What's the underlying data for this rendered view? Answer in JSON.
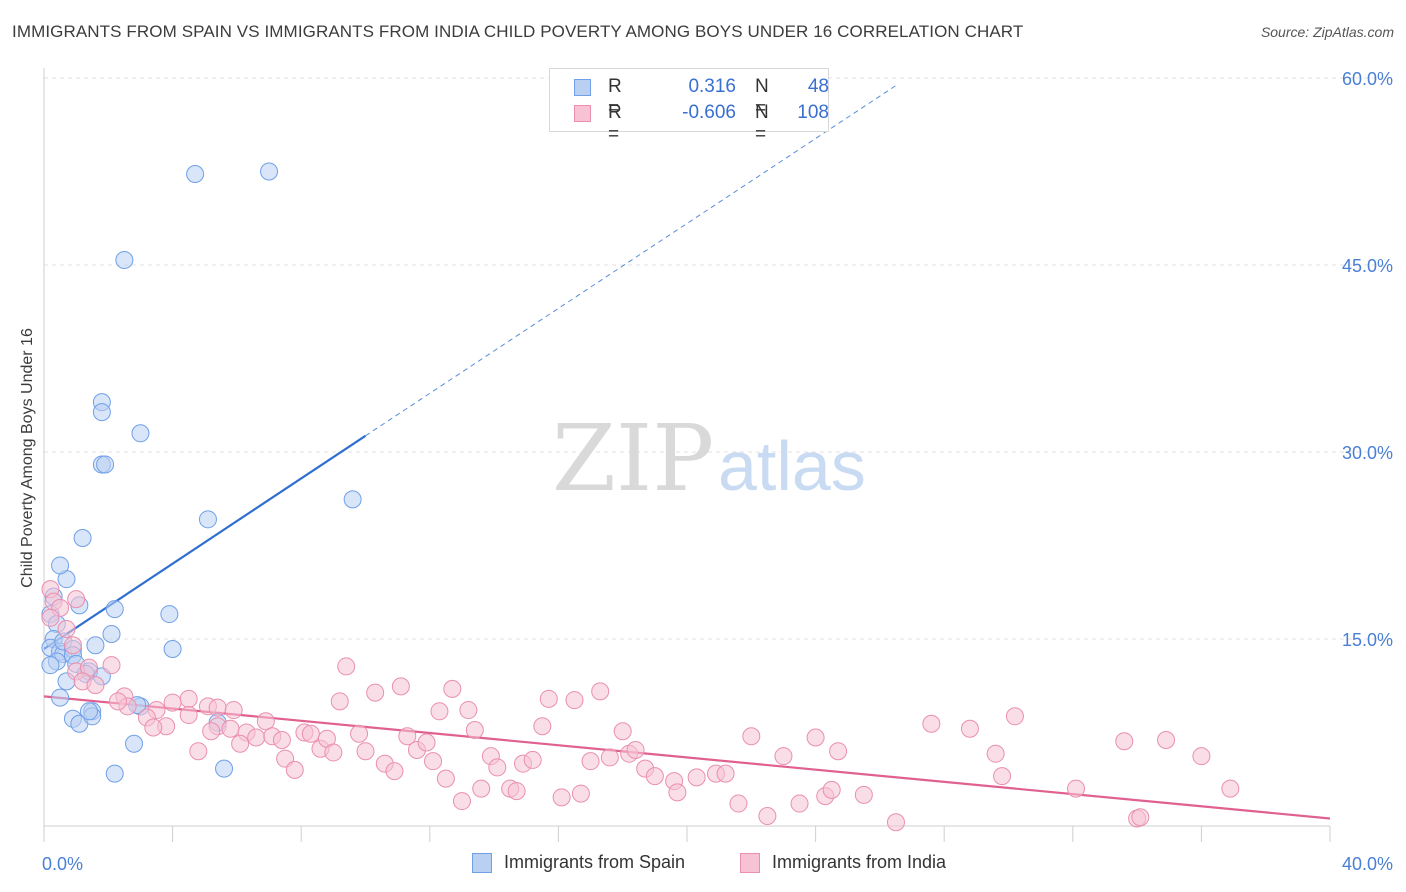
{
  "chart_data": {
    "type": "scatter",
    "title": "IMMIGRANTS FROM SPAIN VS IMMIGRANTS FROM INDIA CHILD POVERTY AMONG BOYS UNDER 16 CORRELATION CHART",
    "source": "Source: ZipAtlas.com",
    "xlabel": "",
    "ylabel": "Child Poverty Among Boys Under 16",
    "xlim": [
      0,
      40
    ],
    "ylim": [
      0,
      60
    ],
    "x_tick_labels": [
      "0.0%",
      "40.0%"
    ],
    "y_tick_labels": [
      "15.0%",
      "30.0%",
      "45.0%",
      "60.0%"
    ],
    "y_ticks": [
      15,
      30,
      45,
      60
    ],
    "watermark": {
      "zip": "ZIP",
      "atlas": "atlas"
    },
    "legend": {
      "r_label": "R =",
      "n_label": "N =",
      "entries": [
        {
          "name": "Immigrants from Spain",
          "r": "0.316",
          "n": "48"
        },
        {
          "name": "Immigrants from India",
          "r": "-0.606",
          "n": "108"
        }
      ]
    },
    "series": [
      {
        "name": "Immigrants from Spain",
        "color": "#6fa0e8",
        "fill": "#b9d0f3",
        "trend": {
          "x0": 0,
          "y0": 14.2,
          "x1": 10,
          "y1": 31.3,
          "dash_to_x": 26.5,
          "dash_to_y": 59.4,
          "color": "#2f6fcf"
        },
        "points": [
          [
            0.3,
            18.4
          ],
          [
            0.2,
            17.0
          ],
          [
            0.4,
            16.2
          ],
          [
            0.3,
            15.0
          ],
          [
            0.2,
            14.3
          ],
          [
            0.5,
            14.0
          ],
          [
            0.6,
            13.8
          ],
          [
            0.4,
            13.2
          ],
          [
            0.2,
            12.9
          ],
          [
            0.6,
            14.8
          ],
          [
            0.9,
            14.2
          ],
          [
            1.6,
            14.5
          ],
          [
            0.9,
            13.7
          ],
          [
            1.0,
            13.0
          ],
          [
            1.4,
            12.4
          ],
          [
            1.8,
            12.0
          ],
          [
            0.7,
            11.6
          ],
          [
            1.3,
            12.2
          ],
          [
            0.5,
            10.3
          ],
          [
            0.9,
            8.6
          ],
          [
            1.1,
            8.2
          ],
          [
            1.5,
            9.2
          ],
          [
            1.5,
            8.8
          ],
          [
            1.4,
            9.2
          ],
          [
            1.1,
            17.7
          ],
          [
            0.7,
            19.8
          ],
          [
            0.5,
            20.9
          ],
          [
            1.2,
            23.1
          ],
          [
            2.2,
            17.4
          ],
          [
            2.1,
            15.4
          ],
          [
            3.9,
            17.0
          ],
          [
            4.0,
            14.2
          ],
          [
            3.0,
            9.6
          ],
          [
            2.9,
            9.7
          ],
          [
            5.4,
            8.3
          ],
          [
            2.8,
            6.6
          ],
          [
            2.2,
            4.2
          ],
          [
            5.6,
            4.6
          ],
          [
            2.5,
            45.4
          ],
          [
            4.7,
            52.3
          ],
          [
            7.0,
            52.5
          ],
          [
            1.8,
            34.0
          ],
          [
            1.8,
            33.2
          ],
          [
            3.0,
            31.5
          ],
          [
            1.8,
            29.0
          ],
          [
            1.9,
            29.0
          ],
          [
            5.1,
            24.6
          ],
          [
            9.6,
            26.2
          ]
        ]
      },
      {
        "name": "Immigrants from India",
        "color": "#ea8fb0",
        "fill": "#f6c2d4",
        "trend": {
          "x0": 0,
          "y0": 10.4,
          "x1": 40,
          "y1": 0.6,
          "color": "#e0608f"
        },
        "points": [
          [
            0.2,
            19.0
          ],
          [
            0.3,
            18.0
          ],
          [
            0.5,
            17.5
          ],
          [
            0.2,
            16.7
          ],
          [
            1.0,
            18.2
          ],
          [
            0.7,
            15.8
          ],
          [
            0.9,
            14.5
          ],
          [
            1.0,
            12.4
          ],
          [
            1.4,
            12.7
          ],
          [
            2.1,
            12.9
          ],
          [
            1.2,
            11.6
          ],
          [
            1.6,
            11.3
          ],
          [
            2.5,
            10.4
          ],
          [
            2.6,
            9.6
          ],
          [
            3.5,
            9.3
          ],
          [
            2.3,
            10.0
          ],
          [
            3.2,
            8.7
          ],
          [
            4.5,
            10.2
          ],
          [
            4.0,
            9.9
          ],
          [
            4.5,
            8.9
          ],
          [
            3.8,
            8.0
          ],
          [
            3.4,
            7.9
          ],
          [
            4.8,
            6.0
          ],
          [
            5.1,
            9.6
          ],
          [
            5.4,
            9.5
          ],
          [
            5.9,
            9.3
          ],
          [
            5.4,
            8.0
          ],
          [
            5.2,
            7.6
          ],
          [
            5.8,
            7.8
          ],
          [
            6.3,
            7.5
          ],
          [
            6.6,
            7.1
          ],
          [
            6.1,
            6.6
          ],
          [
            6.9,
            8.4
          ],
          [
            7.1,
            7.2
          ],
          [
            7.4,
            6.9
          ],
          [
            7.5,
            5.4
          ],
          [
            7.8,
            4.5
          ],
          [
            8.1,
            7.5
          ],
          [
            8.3,
            7.4
          ],
          [
            8.6,
            6.2
          ],
          [
            8.8,
            7.0
          ],
          [
            9.0,
            5.9
          ],
          [
            9.2,
            10.0
          ],
          [
            9.4,
            12.8
          ],
          [
            9.8,
            7.4
          ],
          [
            10.0,
            6.0
          ],
          [
            10.3,
            10.7
          ],
          [
            10.6,
            5.0
          ],
          [
            10.9,
            4.4
          ],
          [
            11.1,
            11.2
          ],
          [
            11.3,
            7.2
          ],
          [
            11.6,
            6.1
          ],
          [
            11.9,
            6.7
          ],
          [
            12.1,
            5.2
          ],
          [
            12.3,
            9.2
          ],
          [
            12.5,
            3.8
          ],
          [
            12.7,
            11.0
          ],
          [
            13.0,
            2.0
          ],
          [
            13.2,
            9.3
          ],
          [
            13.4,
            7.7
          ],
          [
            13.6,
            3.0
          ],
          [
            13.9,
            5.6
          ],
          [
            14.1,
            4.7
          ],
          [
            14.5,
            3.0
          ],
          [
            14.7,
            2.8
          ],
          [
            14.9,
            5.0
          ],
          [
            15.2,
            5.3
          ],
          [
            15.5,
            8.0
          ],
          [
            15.7,
            10.2
          ],
          [
            16.1,
            2.3
          ],
          [
            16.5,
            10.1
          ],
          [
            16.7,
            2.6
          ],
          [
            17.0,
            5.2
          ],
          [
            17.3,
            10.8
          ],
          [
            17.6,
            5.5
          ],
          [
            18.0,
            7.6
          ],
          [
            18.2,
            5.8
          ],
          [
            18.4,
            6.1
          ],
          [
            18.7,
            4.6
          ],
          [
            19.0,
            4.0
          ],
          [
            19.6,
            3.6
          ],
          [
            19.7,
            2.7
          ],
          [
            20.3,
            3.9
          ],
          [
            20.9,
            4.2
          ],
          [
            21.2,
            4.2
          ],
          [
            21.6,
            1.8
          ],
          [
            22.0,
            7.2
          ],
          [
            22.5,
            0.8
          ],
          [
            23.0,
            5.6
          ],
          [
            23.5,
            1.8
          ],
          [
            24.0,
            7.1
          ],
          [
            24.3,
            2.4
          ],
          [
            24.5,
            2.9
          ],
          [
            24.7,
            6.0
          ],
          [
            25.5,
            2.5
          ],
          [
            26.5,
            0.3
          ],
          [
            27.6,
            8.2
          ],
          [
            28.8,
            7.8
          ],
          [
            29.6,
            5.8
          ],
          [
            29.8,
            4.0
          ],
          [
            30.2,
            8.8
          ],
          [
            32.1,
            3.0
          ],
          [
            33.6,
            6.8
          ],
          [
            34.0,
            0.6
          ],
          [
            34.1,
            0.7
          ],
          [
            34.9,
            6.9
          ],
          [
            36.0,
            5.6
          ],
          [
            36.9,
            3.0
          ]
        ]
      }
    ]
  }
}
